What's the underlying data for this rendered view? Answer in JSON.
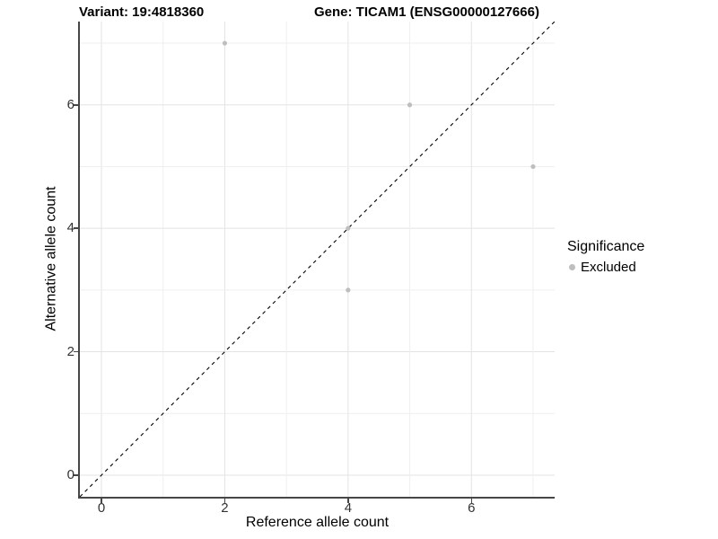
{
  "title": {
    "left": "Variant: 19:4818360",
    "right": "Gene: TICAM1 (ENSG00000127666)"
  },
  "chart_data": {
    "type": "scatter",
    "xlabel": "Reference allele count",
    "ylabel": "Alternative allele count",
    "xlim": [
      -0.35,
      7.35
    ],
    "ylim": [
      -0.35,
      7.35
    ],
    "x_ticks": [
      0,
      2,
      4,
      6
    ],
    "y_ticks": [
      0,
      2,
      4,
      6
    ],
    "grid": {
      "major_breaks": [
        0,
        2,
        4,
        6
      ],
      "minor_breaks": [
        1,
        3,
        5,
        7
      ],
      "background": "#ffffff"
    },
    "reference_line": {
      "style": "dashed",
      "equation": "y = x",
      "color": "#000000"
    },
    "series": [
      {
        "name": "Excluded",
        "color": "#bebebe",
        "points": [
          [
            2,
            7
          ],
          [
            4,
            4
          ],
          [
            4,
            3
          ],
          [
            5,
            6
          ],
          [
            7,
            5
          ]
        ]
      }
    ],
    "legend": {
      "title": "Significance",
      "position": "right",
      "entries": [
        {
          "label": "Excluded",
          "color": "#bebebe"
        }
      ]
    }
  }
}
